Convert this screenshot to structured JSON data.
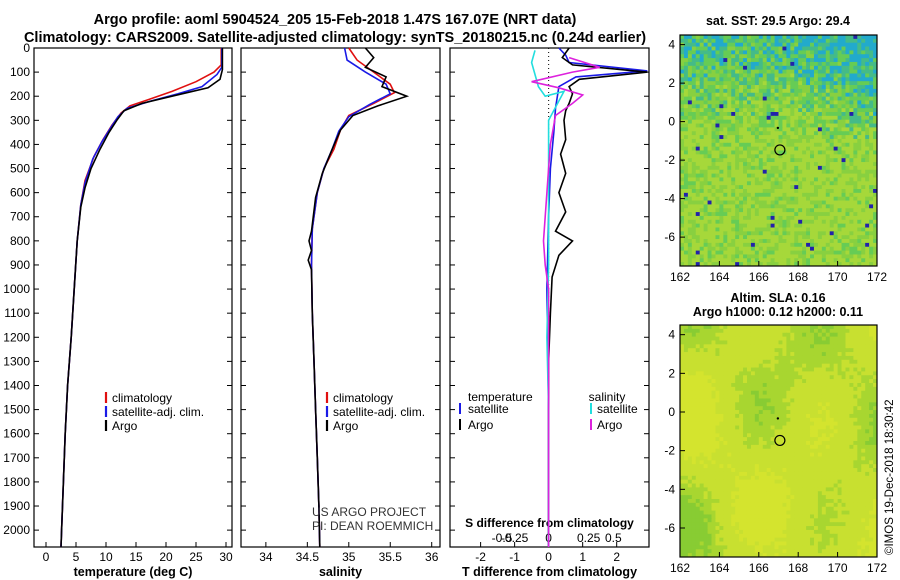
{
  "header": {
    "title_line1": "Argo profile: aoml 5904524_205 15-Feb-2018 1.47S 167.07E (NRT data)",
    "title_line2": "Climatology: CARS2009. Satellite-adjusted climatology: synTS_20180215.nc (0.24d earlier)"
  },
  "colors": {
    "climatology": "#e01010",
    "satellite": "#1a1ae6",
    "argo": "#000000",
    "cyan": "#22dede",
    "magenta": "#dd22dd"
  },
  "depth_axis": {
    "ticks": [
      0,
      100,
      200,
      300,
      400,
      500,
      600,
      700,
      800,
      900,
      1000,
      1100,
      1200,
      1300,
      1400,
      1500,
      1600,
      1700,
      1800,
      1900,
      2000
    ]
  },
  "chart_data": [
    {
      "type": "line",
      "xlabel": "temperature (deg C)",
      "xticks": [
        0,
        5,
        10,
        15,
        20,
        25,
        30
      ],
      "xlim": [
        -2,
        31
      ],
      "ylim": [
        0,
        2070
      ],
      "legend": [
        "climatology",
        "satellite-adj. clim.",
        "Argo"
      ],
      "series": [
        {
          "name": "climatology",
          "color": "#e01010",
          "points": [
            [
              29.2,
              0
            ],
            [
              29.2,
              70
            ],
            [
              28,
              100
            ],
            [
              25,
              140
            ],
            [
              21,
              180
            ],
            [
              17,
              215
            ],
            [
              14,
              240
            ],
            [
              12.5,
              270
            ],
            [
              11,
              320
            ],
            [
              9.5,
              380
            ],
            [
              8,
              450
            ],
            [
              6.5,
              550
            ],
            [
              5.8,
              650
            ],
            [
              5.2,
              800
            ],
            [
              4.7,
              1000
            ],
            [
              4.2,
              1200
            ],
            [
              3.6,
              1400
            ],
            [
              3.2,
              1600
            ],
            [
              2.9,
              1800
            ],
            [
              2.6,
              2000
            ],
            [
              2.5,
              2070
            ]
          ]
        },
        {
          "name": "satellite-adj. clim.",
          "color": "#1a1ae6",
          "points": [
            [
              29.3,
              0
            ],
            [
              29.3,
              80
            ],
            [
              28.5,
              110
            ],
            [
              26,
              160
            ],
            [
              22,
              190
            ],
            [
              17.5,
              220
            ],
            [
              13.5,
              250
            ],
            [
              12,
              285
            ],
            [
              10.8,
              330
            ],
            [
              9.3,
              390
            ],
            [
              7.8,
              460
            ],
            [
              6.5,
              560
            ],
            [
              5.8,
              650
            ],
            [
              5.2,
              800
            ],
            [
              4.7,
              1000
            ],
            [
              4.2,
              1200
            ],
            [
              3.6,
              1400
            ],
            [
              3.2,
              1600
            ],
            [
              2.9,
              1800
            ],
            [
              2.6,
              2000
            ],
            [
              2.5,
              2070
            ]
          ]
        },
        {
          "name": "Argo",
          "color": "#000000",
          "points": [
            [
              29.4,
              0
            ],
            [
              29.4,
              90
            ],
            [
              29,
              130
            ],
            [
              27,
              165
            ],
            [
              21,
              200
            ],
            [
              16,
              230
            ],
            [
              13,
              260
            ],
            [
              11.8,
              300
            ],
            [
              10.5,
              350
            ],
            [
              9,
              420
            ],
            [
              7.5,
              500
            ],
            [
              6.5,
              580
            ],
            [
              5.8,
              660
            ],
            [
              5.2,
              800
            ],
            [
              4.7,
              1000
            ],
            [
              4.2,
              1200
            ],
            [
              3.6,
              1400
            ],
            [
              3.2,
              1600
            ],
            [
              2.9,
              1800
            ],
            [
              2.6,
              2000
            ],
            [
              2.5,
              2070
            ]
          ]
        }
      ]
    },
    {
      "type": "line",
      "xlabel": "salinity",
      "xticks": [
        34,
        34.5,
        35,
        35.5,
        36
      ],
      "xlim": [
        33.7,
        36.1
      ],
      "ylim": [
        0,
        2070
      ],
      "legend": [
        "climatology",
        "satellite-adj. clim.",
        "Argo"
      ],
      "series": [
        {
          "name": "climatology",
          "color": "#e01010",
          "points": [
            [
              35,
              0
            ],
            [
              35.1,
              50
            ],
            [
              35.3,
              100
            ],
            [
              35.5,
              150
            ],
            [
              35.55,
              185
            ],
            [
              35.3,
              230
            ],
            [
              35,
              280
            ],
            [
              34.9,
              340
            ],
            [
              34.82,
              420
            ],
            [
              34.7,
              500
            ],
            [
              34.62,
              600
            ],
            [
              34.56,
              750
            ],
            [
              34.55,
              900
            ],
            [
              34.56,
              1100
            ],
            [
              34.58,
              1300
            ],
            [
              34.6,
              1500
            ],
            [
              34.62,
              1700
            ],
            [
              34.64,
              1900
            ],
            [
              34.65,
              2070
            ]
          ]
        },
        {
          "name": "satellite-adj. clim.",
          "color": "#1a1ae6",
          "points": [
            [
              34.95,
              0
            ],
            [
              34.98,
              50
            ],
            [
              35.2,
              100
            ],
            [
              35.45,
              150
            ],
            [
              35.5,
              190
            ],
            [
              35.25,
              235
            ],
            [
              35,
              285
            ],
            [
              34.88,
              345
            ],
            [
              34.8,
              420
            ],
            [
              34.7,
              500
            ],
            [
              34.62,
              600
            ],
            [
              34.56,
              750
            ],
            [
              34.55,
              900
            ],
            [
              34.56,
              1100
            ],
            [
              34.58,
              1300
            ],
            [
              34.6,
              1500
            ],
            [
              34.62,
              1700
            ],
            [
              34.64,
              1900
            ],
            [
              34.65,
              2070
            ]
          ]
        },
        {
          "name": "Argo",
          "color": "#000000",
          "points": [
            [
              35.2,
              0
            ],
            [
              35.3,
              40
            ],
            [
              35.2,
              80
            ],
            [
              35.45,
              120
            ],
            [
              35.4,
              160
            ],
            [
              35.7,
              200
            ],
            [
              35.35,
              240
            ],
            [
              35.05,
              280
            ],
            [
              34.9,
              340
            ],
            [
              34.8,
              420
            ],
            [
              34.68,
              520
            ],
            [
              34.6,
              620
            ],
            [
              34.55,
              760
            ],
            [
              34.52,
              800
            ],
            [
              34.55,
              840
            ],
            [
              34.51,
              880
            ],
            [
              34.55,
              920
            ],
            [
              34.56,
              1100
            ],
            [
              34.58,
              1300
            ],
            [
              34.6,
              1500
            ],
            [
              34.62,
              1700
            ],
            [
              34.64,
              1900
            ],
            [
              34.65,
              2070
            ]
          ]
        }
      ]
    },
    {
      "type": "line",
      "xlabel": "T difference from climatology",
      "xticks": [
        -2,
        -1,
        0,
        1,
        2
      ],
      "xlim": [
        -2.9,
        2.95
      ],
      "ylim": [
        0,
        2070
      ],
      "top_xlabel": "S difference from climatology",
      "top_xticks": [
        "-0.5",
        "-0.25",
        "0",
        "0.25",
        "0.5"
      ],
      "legend_left_title": "temperature",
      "legend_right_title": "salinity",
      "legend_left": [
        "satellite",
        "Argo"
      ],
      "legend_right": [
        "satellite",
        "Argo"
      ],
      "series": [
        {
          "name": "temperature satellite",
          "color": "#1a1ae6",
          "points": [
            [
              0.3,
              0
            ],
            [
              0.5,
              30
            ],
            [
              0.6,
              60
            ],
            [
              2.9,
              95
            ],
            [
              0.8,
              120
            ],
            [
              0.3,
              160
            ],
            [
              0.2,
              250
            ],
            [
              0.15,
              350
            ],
            [
              0.05,
              500
            ],
            [
              0,
              700
            ],
            [
              -0.05,
              1000
            ],
            [
              0,
              1500
            ],
            [
              0,
              2070
            ]
          ]
        },
        {
          "name": "temperature Argo",
          "color": "#000000",
          "points": [
            [
              0.6,
              0
            ],
            [
              0.4,
              40
            ],
            [
              0.7,
              70
            ],
            [
              2.9,
              100
            ],
            [
              0.9,
              130
            ],
            [
              0.6,
              160
            ],
            [
              0.7,
              190
            ],
            [
              0.6,
              230
            ],
            [
              0.5,
              260
            ],
            [
              0.45,
              300
            ],
            [
              0.5,
              380
            ],
            [
              0.35,
              440
            ],
            [
              0.5,
              520
            ],
            [
              0.3,
              600
            ],
            [
              0.5,
              680
            ],
            [
              0.2,
              760
            ],
            [
              0.7,
              800
            ],
            [
              0.3,
              860
            ],
            [
              0.1,
              950
            ],
            [
              0.05,
              1100
            ],
            [
              0,
              1300
            ],
            [
              0,
              2070
            ]
          ]
        },
        {
          "name": "salinity satellite",
          "color": "#22dede",
          "points": [
            [
              -0.4,
              10
            ],
            [
              -0.5,
              60
            ],
            [
              -0.4,
              110
            ],
            [
              -0.3,
              160
            ],
            [
              -0.1,
              200
            ],
            [
              0.45,
              180
            ],
            [
              0,
              300
            ],
            [
              0,
              500
            ],
            [
              0,
              700
            ],
            [
              0,
              900
            ],
            [
              -0.05,
              1200
            ],
            [
              0,
              1500
            ],
            [
              0,
              1800
            ],
            [
              0,
              2070
            ]
          ]
        },
        {
          "name": "salinity Argo",
          "color": "#dd22dd",
          "points": [
            [
              0.6,
              40
            ],
            [
              1.5,
              80
            ],
            [
              0.7,
              100
            ],
            [
              -0.5,
              140
            ],
            [
              0.3,
              165
            ],
            [
              1,
              195
            ],
            [
              0.7,
              230
            ],
            [
              0.2,
              280
            ],
            [
              0.05,
              400
            ],
            [
              0,
              500
            ],
            [
              -0.15,
              800
            ],
            [
              -0.1,
              900
            ],
            [
              0,
              1000
            ],
            [
              0,
              1200
            ],
            [
              0,
              1500
            ],
            [
              0,
              2070
            ]
          ]
        }
      ]
    },
    {
      "type": "heatmap",
      "title": "sat. SST: 29.5 Argo: 29.4",
      "xticks": [
        162,
        164,
        166,
        168,
        170,
        172
      ],
      "yticks": [
        4,
        2,
        0,
        -2,
        -4,
        -6
      ],
      "xlim": [
        162,
        172
      ],
      "ylim": [
        -7.5,
        4.5
      ],
      "argo_position": [
        167.07,
        -1.47
      ]
    },
    {
      "type": "heatmap",
      "title_line1": "Altim. SLA: 0.16",
      "title_line2": "Argo h1000: 0.12 h2000: 0.11",
      "xticks": [
        162,
        164,
        166,
        168,
        170,
        172
      ],
      "yticks": [
        4,
        2,
        0,
        -2,
        -4,
        -6
      ],
      "xlim": [
        162,
        172
      ],
      "ylim": [
        -7.5,
        4.5
      ],
      "argo_position": [
        167.07,
        -1.47
      ]
    }
  ],
  "credits": {
    "line1": "US ARGO PROJECT",
    "line2": "PI: DEAN ROEMMICH"
  },
  "stamp": "©IMOS 19-Dec-2018 18:30:42"
}
